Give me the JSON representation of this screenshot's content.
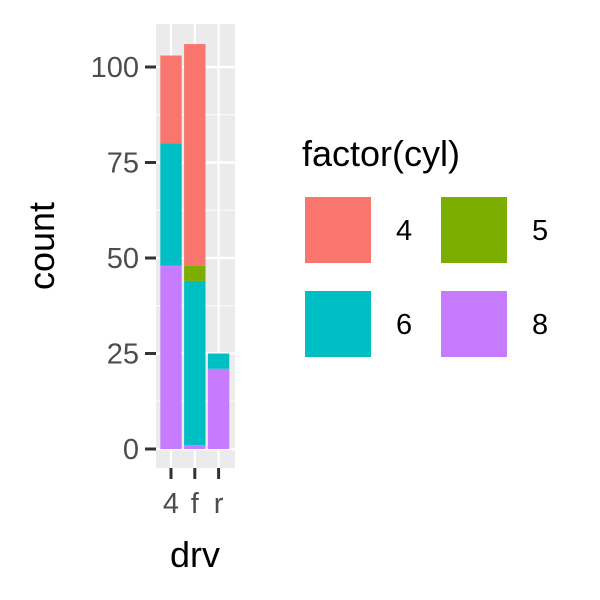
{
  "chart_data": {
    "type": "bar",
    "stacked": true,
    "categories": [
      "4",
      "f",
      "r"
    ],
    "series": [
      {
        "name": "4",
        "values": [
          23,
          58,
          0
        ],
        "color": "#F8766D"
      },
      {
        "name": "5",
        "values": [
          0,
          4,
          0
        ],
        "color": "#7CAE00"
      },
      {
        "name": "6",
        "values": [
          32,
          43,
          4
        ],
        "color": "#00BFC4"
      },
      {
        "name": "8",
        "values": [
          48,
          1,
          21
        ],
        "color": "#C77CFF"
      }
    ],
    "stack_order_top_to_bottom": [
      "4",
      "5",
      "6",
      "8"
    ],
    "xlabel": "drv",
    "ylabel": "count",
    "ylim": [
      0,
      110
    ],
    "yticks": [
      0,
      25,
      50,
      75,
      100
    ],
    "yticklabels": [
      "0",
      "25",
      "50",
      "75",
      "100"
    ],
    "grid": true,
    "panel_background": "#EBEBEB",
    "legend": {
      "title": "factor(cyl)",
      "position": "right",
      "items": [
        "4",
        "5",
        "6",
        "8"
      ]
    }
  }
}
